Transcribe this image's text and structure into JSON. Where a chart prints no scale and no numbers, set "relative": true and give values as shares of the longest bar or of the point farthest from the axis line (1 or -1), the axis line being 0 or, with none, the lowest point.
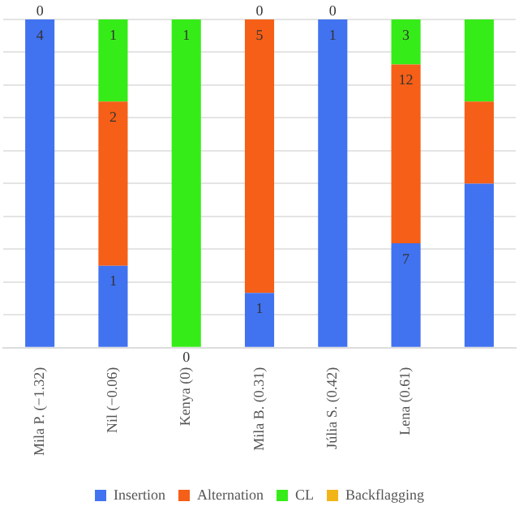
{
  "chart_data": {
    "type": "bar",
    "stacked": true,
    "relative": true,
    "grid": "y",
    "legend": "bottom",
    "marker": "square",
    "categories": [
      "Mila P. (−1.32)",
      "Nil (−0.06)",
      "Kenya (0)",
      "Mila B. (0.31)",
      "Júlia S. (0.42)",
      "Lena (0.61)",
      null
    ],
    "series": [
      {
        "name": "Insertion",
        "color": "#4172f0",
        "values": [
          1,
          0.25,
          0,
          0.167,
          1,
          0.318,
          0.5
        ]
      },
      {
        "name": "Alternation",
        "color": "#f55f17",
        "values": [
          0,
          0.5,
          0,
          0.833,
          0,
          0.545,
          0.25
        ]
      },
      {
        "name": "CL",
        "color": "#36ec18",
        "values": [
          0,
          0.25,
          1,
          0,
          0,
          0.137,
          0.25
        ]
      },
      {
        "name": "Backflagging",
        "color": "#f2b518",
        "values": [
          0,
          0,
          0,
          0,
          0,
          0,
          0
        ]
      }
    ],
    "annotations": [
      {
        "text": "4",
        "x": "Mila P. (−1.32)",
        "y": 1
      },
      {
        "text": "0",
        "x": "Mila P. (−1.32)",
        "y": 1
      },
      {
        "text": "1",
        "x": "Nil (−0.06)",
        "y": 0.25
      },
      {
        "text": "2",
        "x": "Nil (−0.06)",
        "y": 0.75
      },
      {
        "text": "1",
        "x": "Nil (−0.06)",
        "y": 1
      },
      {
        "text": "0",
        "x": "Kenya (0)",
        "y": 0
      },
      {
        "text": "1",
        "x": "Kenya (0)",
        "y": 1
      },
      {
        "text": "1",
        "x": "Mila B. (0.31)",
        "y": 0.167
      },
      {
        "text": "5",
        "x": "Mila B. (0.31)",
        "y": 1
      },
      {
        "text": "0",
        "x": "Mila B. (0.31)",
        "y": 1
      },
      {
        "text": "1",
        "x": "Júlia S. (0.42)",
        "y": 1
      },
      {
        "text": "0",
        "x": "Júlia S. (0.42)",
        "y": 1
      },
      {
        "text": "7",
        "x": "Lena (0.61)",
        "y": 0.318
      },
      {
        "text": "12",
        "x": "Lena (0.61)",
        "y": 0.863
      },
      {
        "text": "3",
        "x": "Lena (0.61)",
        "y": 1
      }
    ]
  }
}
